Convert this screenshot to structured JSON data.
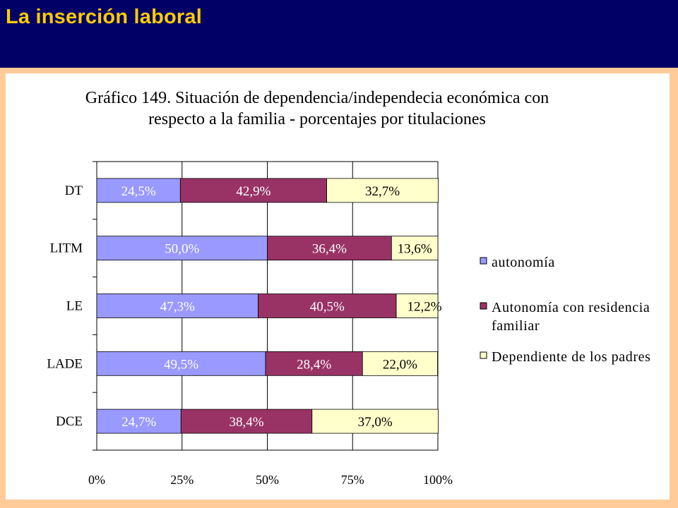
{
  "header": {
    "title": "La inserción laboral"
  },
  "chart_data": {
    "type": "bar",
    "orientation": "horizontal",
    "stacked": true,
    "title_lines": [
      "Gráfico 149. Situación de dependencia/independecia económica con",
      "respecto a la familia - porcentajes por titulaciones"
    ],
    "categories": [
      "DT",
      "LITM",
      "LE",
      "LADE",
      "DCE"
    ],
    "series": [
      {
        "name": "autonomía",
        "color": "#9999FF",
        "values": [
          24.5,
          50.0,
          47.3,
          49.5,
          24.7
        ],
        "labels": [
          "24,5%",
          "50,0%",
          "47,3%",
          "49,5%",
          "24,7%"
        ]
      },
      {
        "name": "Autonomía con residencia familiar",
        "color": "#993366",
        "values": [
          42.9,
          36.4,
          40.5,
          28.4,
          38.4
        ],
        "labels": [
          "42,9%",
          "36,4%",
          "40,5%",
          "28,4%",
          "38,4%"
        ]
      },
      {
        "name": "Dependiente de los padres",
        "color": "#FFFFCC",
        "values": [
          32.7,
          13.6,
          12.2,
          22.0,
          37.0
        ],
        "labels": [
          "32,7%",
          "13,6%",
          "12,2%",
          "22,0%",
          "37,0%"
        ]
      }
    ],
    "xlim": [
      0,
      100
    ],
    "x_ticks": [
      "0%",
      "25%",
      "50%",
      "75%",
      "100%"
    ],
    "grid": true,
    "legend_position": "right",
    "legend_labels": [
      [
        "autonomía"
      ],
      [
        "Autonomía con residencia",
        "familiar"
      ],
      [
        "Dependiente de los padres"
      ]
    ]
  }
}
